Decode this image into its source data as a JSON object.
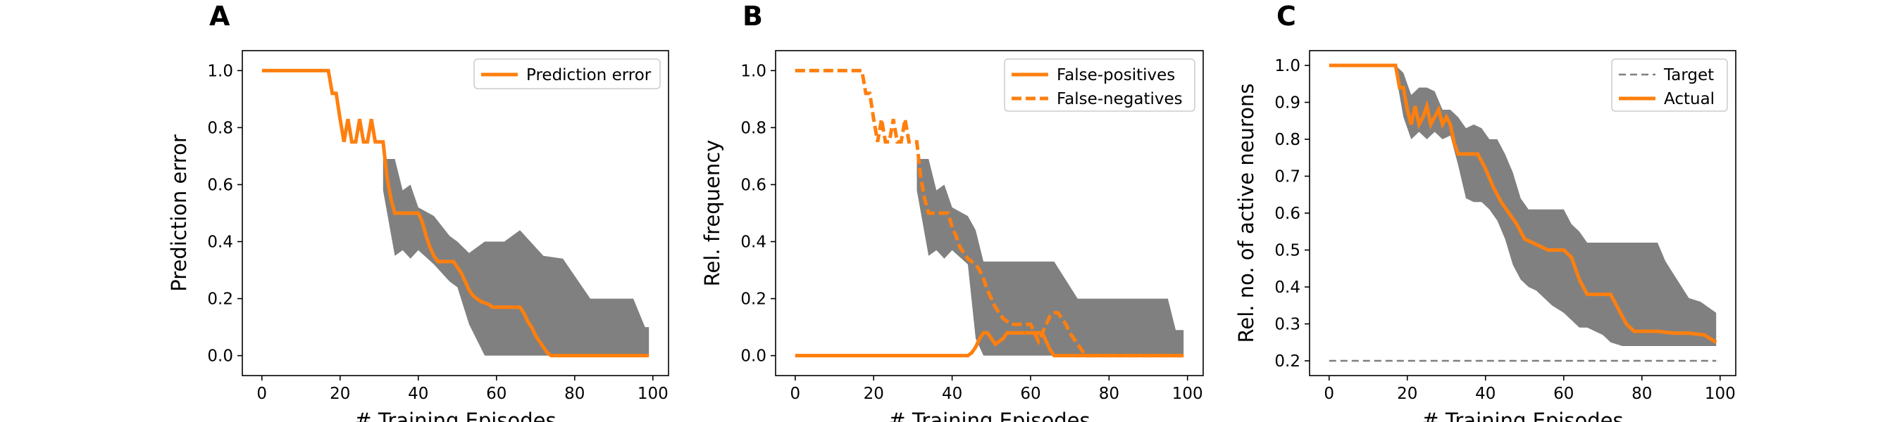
{
  "chart_data": [
    {
      "type": "line",
      "panel_label": "A",
      "xlabel": "# Training Episodes",
      "ylabel": "Prediction error",
      "xlim": [
        -5,
        104
      ],
      "ylim": [
        -0.07,
        1.07
      ],
      "xticks": [
        0,
        20,
        40,
        60,
        80,
        100
      ],
      "yticks": [
        0.0,
        0.2,
        0.4,
        0.6,
        0.8,
        1.0
      ],
      "ytick_labels": [
        "0.0",
        "0.2",
        "0.4",
        "0.6",
        "0.8",
        "1.0"
      ],
      "legend_position": "top-right",
      "band": {
        "color": "#808080",
        "points": [
          {
            "x": 31,
            "lo": 0.58,
            "hi": 0.69
          },
          {
            "x": 34,
            "lo": 0.35,
            "hi": 0.69
          },
          {
            "x": 36,
            "lo": 0.37,
            "hi": 0.58
          },
          {
            "x": 38,
            "lo": 0.34,
            "hi": 0.6
          },
          {
            "x": 40,
            "lo": 0.37,
            "hi": 0.52
          },
          {
            "x": 44,
            "lo": 0.32,
            "hi": 0.49
          },
          {
            "x": 48,
            "lo": 0.26,
            "hi": 0.42
          },
          {
            "x": 50,
            "lo": 0.24,
            "hi": 0.4
          },
          {
            "x": 53,
            "lo": 0.11,
            "hi": 0.36
          },
          {
            "x": 57,
            "lo": 0.0,
            "hi": 0.4
          },
          {
            "x": 62,
            "lo": 0.0,
            "hi": 0.4
          },
          {
            "x": 66,
            "lo": 0.0,
            "hi": 0.44
          },
          {
            "x": 72,
            "lo": 0.0,
            "hi": 0.35
          },
          {
            "x": 77,
            "lo": 0.0,
            "hi": 0.34
          },
          {
            "x": 84,
            "lo": 0.0,
            "hi": 0.2
          },
          {
            "x": 95,
            "lo": 0.0,
            "hi": 0.2
          },
          {
            "x": 98,
            "lo": 0.0,
            "hi": 0.1
          },
          {
            "x": 99,
            "lo": 0.0,
            "hi": 0.1
          }
        ]
      },
      "series": [
        {
          "name": "Prediction error",
          "color": "#ff7f0e",
          "dash": "solid",
          "x": [
            0,
            17,
            18,
            19,
            20,
            21,
            22,
            23,
            24,
            25,
            26,
            27,
            28,
            29,
            30,
            31,
            32,
            33,
            34,
            35,
            36,
            37,
            38,
            39,
            40,
            41,
            42,
            43,
            44,
            45,
            46,
            47,
            48,
            49,
            50,
            51,
            52,
            53,
            54,
            55,
            56,
            57,
            58,
            59,
            60,
            61,
            62,
            63,
            64,
            65,
            66,
            67,
            68,
            69,
            70,
            71,
            72,
            73,
            74,
            99
          ],
          "y": [
            1.0,
            1.0,
            0.92,
            0.92,
            0.83,
            0.75,
            0.83,
            0.75,
            0.75,
            0.83,
            0.75,
            0.75,
            0.83,
            0.75,
            0.75,
            0.75,
            0.625,
            0.55,
            0.5,
            0.5,
            0.5,
            0.5,
            0.5,
            0.5,
            0.5,
            0.47,
            0.42,
            0.38,
            0.35,
            0.33,
            0.33,
            0.33,
            0.33,
            0.33,
            0.31,
            0.29,
            0.26,
            0.23,
            0.21,
            0.2,
            0.19,
            0.185,
            0.18,
            0.17,
            0.17,
            0.17,
            0.17,
            0.17,
            0.17,
            0.17,
            0.17,
            0.15,
            0.12,
            0.1,
            0.07,
            0.05,
            0.03,
            0.01,
            0.0,
            0.0
          ]
        }
      ]
    },
    {
      "type": "line",
      "panel_label": "B",
      "xlabel": "# Training Episodes",
      "ylabel": "Rel. frequency",
      "xlim": [
        -5,
        104
      ],
      "ylim": [
        -0.07,
        1.07
      ],
      "xticks": [
        0,
        20,
        40,
        60,
        80,
        100
      ],
      "yticks": [
        0.0,
        0.2,
        0.4,
        0.6,
        0.8,
        1.0
      ],
      "ytick_labels": [
        "0.0",
        "0.2",
        "0.4",
        "0.6",
        "0.8",
        "1.0"
      ],
      "legend_position": "top-right",
      "band": {
        "color": "#808080",
        "points": [
          {
            "x": 31,
            "lo": 0.58,
            "hi": 0.69
          },
          {
            "x": 34,
            "lo": 0.35,
            "hi": 0.69
          },
          {
            "x": 36,
            "lo": 0.37,
            "hi": 0.58
          },
          {
            "x": 38,
            "lo": 0.34,
            "hi": 0.6
          },
          {
            "x": 40,
            "lo": 0.37,
            "hi": 0.52
          },
          {
            "x": 44,
            "lo": 0.32,
            "hi": 0.49
          },
          {
            "x": 46,
            "lo": 0.06,
            "hi": 0.44
          },
          {
            "x": 48,
            "lo": 0.0,
            "hi": 0.33
          },
          {
            "x": 57,
            "lo": 0.0,
            "hi": 0.33
          },
          {
            "x": 62,
            "lo": 0.0,
            "hi": 0.33
          },
          {
            "x": 66,
            "lo": 0.0,
            "hi": 0.33
          },
          {
            "x": 72,
            "lo": 0.0,
            "hi": 0.2
          },
          {
            "x": 95,
            "lo": 0.0,
            "hi": 0.2
          },
          {
            "x": 97,
            "lo": 0.0,
            "hi": 0.09
          },
          {
            "x": 99,
            "lo": 0.0,
            "hi": 0.09
          }
        ]
      },
      "series": [
        {
          "name": "False-positives",
          "color": "#ff7f0e",
          "dash": "solid",
          "x": [
            0,
            44,
            45,
            46,
            47,
            48,
            49,
            50,
            51,
            52,
            53,
            54,
            55,
            56,
            57,
            58,
            59,
            60,
            61,
            62,
            63,
            64,
            65,
            66,
            99
          ],
          "y": [
            0.0,
            0.0,
            0.01,
            0.03,
            0.06,
            0.08,
            0.08,
            0.06,
            0.04,
            0.05,
            0.06,
            0.08,
            0.08,
            0.08,
            0.08,
            0.08,
            0.08,
            0.08,
            0.08,
            0.08,
            0.08,
            0.05,
            0.02,
            0.0,
            0.0
          ]
        },
        {
          "name": "False-negatives",
          "color": "#ff7f0e",
          "dash": "dashed",
          "x": [
            0,
            17,
            18,
            19,
            20,
            21,
            22,
            23,
            24,
            25,
            26,
            27,
            28,
            29,
            30,
            31,
            32,
            33,
            34,
            35,
            36,
            37,
            38,
            39,
            40,
            41,
            42,
            43,
            44,
            45,
            46,
            47,
            48,
            49,
            50,
            51,
            52,
            53,
            54,
            55,
            56,
            57,
            58,
            59,
            60,
            61,
            62,
            63,
            64,
            65,
            66,
            67,
            68,
            69,
            70,
            71,
            72,
            73,
            74,
            99
          ],
          "y": [
            1.0,
            1.0,
            0.92,
            0.92,
            0.83,
            0.75,
            0.83,
            0.75,
            0.75,
            0.83,
            0.75,
            0.75,
            0.83,
            0.75,
            0.75,
            0.75,
            0.625,
            0.55,
            0.5,
            0.5,
            0.5,
            0.5,
            0.5,
            0.5,
            0.45,
            0.42,
            0.38,
            0.36,
            0.34,
            0.33,
            0.32,
            0.3,
            0.27,
            0.23,
            0.2,
            0.17,
            0.15,
            0.13,
            0.12,
            0.11,
            0.11,
            0.11,
            0.11,
            0.11,
            0.11,
            0.08,
            0.05,
            0.08,
            0.11,
            0.14,
            0.15,
            0.15,
            0.13,
            0.11,
            0.08,
            0.06,
            0.04,
            0.02,
            0.0,
            0.0
          ]
        }
      ]
    },
    {
      "type": "line",
      "panel_label": "C",
      "xlabel": "# Training Episodes",
      "ylabel": "Rel. no. of active neurons",
      "xlim": [
        -5,
        104
      ],
      "ylim": [
        0.16,
        1.04
      ],
      "xticks": [
        0,
        20,
        40,
        60,
        80,
        100
      ],
      "yticks": [
        0.2,
        0.3,
        0.4,
        0.5,
        0.6,
        0.7,
        0.8,
        0.9,
        1.0
      ],
      "ytick_labels": [
        "0.2",
        "0.3",
        "0.4",
        "0.5",
        "0.6",
        "0.7",
        "0.8",
        "0.9",
        "1.0"
      ],
      "legend_position": "top-right",
      "band": {
        "color": "#808080",
        "points": [
          {
            "x": 17,
            "lo": 0.98,
            "hi": 1.0
          },
          {
            "x": 19,
            "lo": 0.86,
            "hi": 0.98
          },
          {
            "x": 21,
            "lo": 0.8,
            "hi": 0.92
          },
          {
            "x": 23,
            "lo": 0.82,
            "hi": 0.94
          },
          {
            "x": 25,
            "lo": 0.8,
            "hi": 0.94
          },
          {
            "x": 27,
            "lo": 0.82,
            "hi": 0.93
          },
          {
            "x": 29,
            "lo": 0.8,
            "hi": 0.88
          },
          {
            "x": 31,
            "lo": 0.81,
            "hi": 0.88
          },
          {
            "x": 33,
            "lo": 0.73,
            "hi": 0.86
          },
          {
            "x": 35,
            "lo": 0.64,
            "hi": 0.83
          },
          {
            "x": 37,
            "lo": 0.63,
            "hi": 0.84
          },
          {
            "x": 39,
            "lo": 0.63,
            "hi": 0.83
          },
          {
            "x": 41,
            "lo": 0.61,
            "hi": 0.8
          },
          {
            "x": 43,
            "lo": 0.58,
            "hi": 0.8
          },
          {
            "x": 45,
            "lo": 0.53,
            "hi": 0.76
          },
          {
            "x": 47,
            "lo": 0.46,
            "hi": 0.71
          },
          {
            "x": 49,
            "lo": 0.42,
            "hi": 0.64
          },
          {
            "x": 51,
            "lo": 0.4,
            "hi": 0.61
          },
          {
            "x": 53,
            "lo": 0.39,
            "hi": 0.61
          },
          {
            "x": 55,
            "lo": 0.37,
            "hi": 0.61
          },
          {
            "x": 57,
            "lo": 0.35,
            "hi": 0.61
          },
          {
            "x": 60,
            "lo": 0.33,
            "hi": 0.61
          },
          {
            "x": 62,
            "lo": 0.31,
            "hi": 0.57
          },
          {
            "x": 64,
            "lo": 0.29,
            "hi": 0.55
          },
          {
            "x": 66,
            "lo": 0.29,
            "hi": 0.52
          },
          {
            "x": 68,
            "lo": 0.28,
            "hi": 0.52
          },
          {
            "x": 70,
            "lo": 0.27,
            "hi": 0.52
          },
          {
            "x": 72,
            "lo": 0.25,
            "hi": 0.52
          },
          {
            "x": 75,
            "lo": 0.24,
            "hi": 0.52
          },
          {
            "x": 78,
            "lo": 0.24,
            "hi": 0.52
          },
          {
            "x": 84,
            "lo": 0.24,
            "hi": 0.52
          },
          {
            "x": 86,
            "lo": 0.24,
            "hi": 0.47
          },
          {
            "x": 89,
            "lo": 0.24,
            "hi": 0.42
          },
          {
            "x": 92,
            "lo": 0.24,
            "hi": 0.37
          },
          {
            "x": 95,
            "lo": 0.24,
            "hi": 0.36
          },
          {
            "x": 99,
            "lo": 0.24,
            "hi": 0.33
          }
        ]
      },
      "series": [
        {
          "name": "Target",
          "color": "#7f7f7f",
          "dash": "dashed",
          "x": [
            0,
            99
          ],
          "y": [
            0.2,
            0.2
          ]
        },
        {
          "name": "Actual",
          "color": "#ff7f0e",
          "dash": "solid",
          "x": [
            0,
            17,
            18,
            19,
            20,
            21,
            22,
            23,
            24,
            25,
            26,
            27,
            28,
            29,
            30,
            31,
            32,
            33,
            34,
            36,
            38,
            40,
            42,
            44,
            46,
            48,
            50,
            52,
            54,
            56,
            58,
            60,
            62,
            64,
            66,
            68,
            70,
            72,
            74,
            76,
            78,
            80,
            84,
            88,
            92,
            96,
            99
          ],
          "y": [
            1.0,
            1.0,
            0.94,
            0.94,
            0.88,
            0.84,
            0.89,
            0.84,
            0.86,
            0.89,
            0.84,
            0.86,
            0.88,
            0.84,
            0.86,
            0.84,
            0.79,
            0.76,
            0.76,
            0.76,
            0.76,
            0.72,
            0.67,
            0.63,
            0.6,
            0.57,
            0.53,
            0.52,
            0.51,
            0.5,
            0.5,
            0.5,
            0.48,
            0.42,
            0.38,
            0.38,
            0.38,
            0.38,
            0.34,
            0.3,
            0.28,
            0.28,
            0.28,
            0.275,
            0.275,
            0.27,
            0.25
          ]
        }
      ]
    }
  ]
}
